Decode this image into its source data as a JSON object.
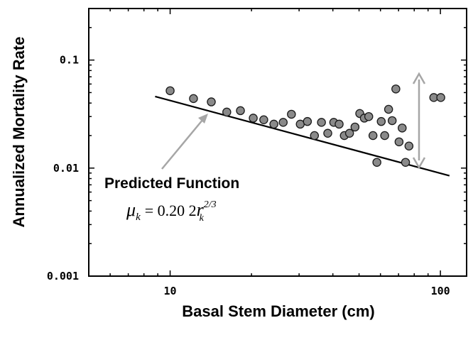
{
  "chart_data": {
    "type": "scatter",
    "xlabel": "Basal Stem Diameter (cm)",
    "ylabel": "Annualized Mortality Rate",
    "x_scale": "log",
    "y_scale": "log",
    "xlim": [
      5,
      125
    ],
    "ylim": [
      0.001,
      0.3
    ],
    "x_ticks": [
      10,
      100
    ],
    "x_tick_labels": [
      "10",
      "100"
    ],
    "y_ticks": [
      0.001,
      0.01,
      0.1
    ],
    "y_tick_labels": [
      "0.001",
      "0.01",
      "0.1"
    ],
    "grid": false,
    "colors": {
      "points": "#8a8a8a",
      "line": "#000000",
      "arrows": "#a6a6a6"
    },
    "points": [
      {
        "x": 10,
        "y": 0.052
      },
      {
        "x": 12.2,
        "y": 0.044
      },
      {
        "x": 14.2,
        "y": 0.041
      },
      {
        "x": 16.2,
        "y": 0.033
      },
      {
        "x": 18.2,
        "y": 0.034
      },
      {
        "x": 20.3,
        "y": 0.029
      },
      {
        "x": 22.2,
        "y": 0.028
      },
      {
        "x": 24.2,
        "y": 0.0255
      },
      {
        "x": 26.2,
        "y": 0.0265
      },
      {
        "x": 28.1,
        "y": 0.0315
      },
      {
        "x": 30.3,
        "y": 0.0255
      },
      {
        "x": 32.2,
        "y": 0.027
      },
      {
        "x": 34.2,
        "y": 0.02
      },
      {
        "x": 36.3,
        "y": 0.0265
      },
      {
        "x": 38.3,
        "y": 0.021
      },
      {
        "x": 40.3,
        "y": 0.0265
      },
      {
        "x": 42.2,
        "y": 0.0255
      },
      {
        "x": 44.1,
        "y": 0.02
      },
      {
        "x": 46.1,
        "y": 0.021
      },
      {
        "x": 48.3,
        "y": 0.024
      },
      {
        "x": 50.3,
        "y": 0.032
      },
      {
        "x": 52.3,
        "y": 0.029
      },
      {
        "x": 54.3,
        "y": 0.03
      },
      {
        "x": 56.3,
        "y": 0.02
      },
      {
        "x": 58.2,
        "y": 0.0113
      },
      {
        "x": 60.4,
        "y": 0.027
      },
      {
        "x": 62.2,
        "y": 0.02
      },
      {
        "x": 64.3,
        "y": 0.035
      },
      {
        "x": 66.3,
        "y": 0.0275
      },
      {
        "x": 68.4,
        "y": 0.054
      },
      {
        "x": 70.3,
        "y": 0.0175
      },
      {
        "x": 72.2,
        "y": 0.0235
      },
      {
        "x": 74.3,
        "y": 0.0113
      },
      {
        "x": 76.5,
        "y": 0.016
      },
      {
        "x": 94.5,
        "y": 0.045
      },
      {
        "x": 100.3,
        "y": 0.045
      }
    ],
    "predicted_line": {
      "x": [
        8.8,
        108
      ],
      "y": [
        0.046,
        0.0085
      ]
    },
    "annotations": {
      "title": "Predicted Function",
      "formula": {
        "lhs": "μ",
        "lhs_sub": "k",
        "eq": "= 0.20 2",
        "var": "r",
        "var_sub": "k",
        "var_sup": "2/3"
      }
    }
  }
}
